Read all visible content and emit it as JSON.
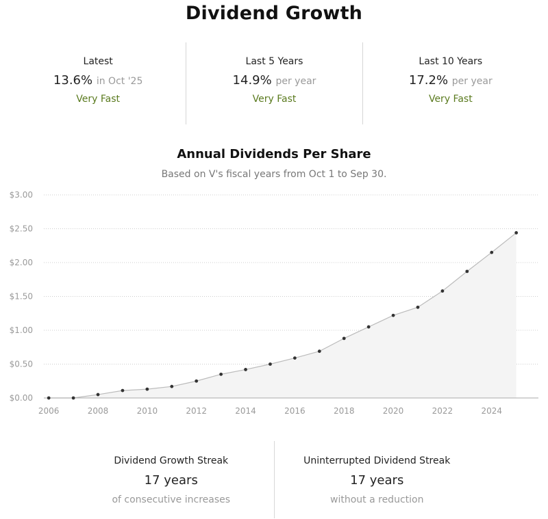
{
  "page": {
    "title": "Dividend Growth"
  },
  "stats": [
    {
      "label": "Latest",
      "value": "13.6%",
      "suffix": "in Oct '25",
      "rating": "Very Fast"
    },
    {
      "label": "Last 5 Years",
      "value": "14.9%",
      "suffix": "per year",
      "rating": "Very Fast"
    },
    {
      "label": "Last 10 Years",
      "value": "17.2%",
      "suffix": "per year",
      "rating": "Very Fast"
    }
  ],
  "chart_header": {
    "title": "Annual Dividends Per Share",
    "subtitle": "Based on V's fiscal years from Oct 1 to Sep 30."
  },
  "chart_data": {
    "type": "area",
    "x": [
      2006,
      2007,
      2008,
      2009,
      2010,
      2011,
      2012,
      2013,
      2014,
      2015,
      2016,
      2017,
      2018,
      2019,
      2020,
      2021,
      2022,
      2023,
      2024,
      2025
    ],
    "values": [
      0.0,
      0.0,
      0.05,
      0.11,
      0.13,
      0.17,
      0.25,
      0.35,
      0.42,
      0.5,
      0.59,
      0.69,
      0.88,
      1.05,
      1.22,
      1.34,
      1.58,
      1.87,
      2.15,
      2.44
    ],
    "ylim": [
      0,
      3
    ],
    "yticks": [
      0,
      0.5,
      1.0,
      1.5,
      2.0,
      2.5,
      3.0
    ],
    "ytick_labels": [
      "$0.00",
      "$0.50",
      "$1.00",
      "$1.50",
      "$2.00",
      "$2.50",
      "$3.00"
    ],
    "xticks": [
      2006,
      2008,
      2010,
      2012,
      2014,
      2016,
      2018,
      2020,
      2022,
      2024
    ],
    "xtick_labels": [
      "2006",
      "2008",
      "2010",
      "2012",
      "2014",
      "2016",
      "2018",
      "2020",
      "2022",
      "2024"
    ],
    "grid": true,
    "colors": {
      "line": "#bbbbbb",
      "fill": "#f4f4f4",
      "point": "#333333",
      "grid": "#cccccc",
      "tick": "#999999"
    }
  },
  "streaks": [
    {
      "label": "Dividend Growth Streak",
      "value": "17 years",
      "note": "of consecutive increases"
    },
    {
      "label": "Uninterrupted Dividend Streak",
      "value": "17 years",
      "note": "without a reduction"
    }
  ]
}
